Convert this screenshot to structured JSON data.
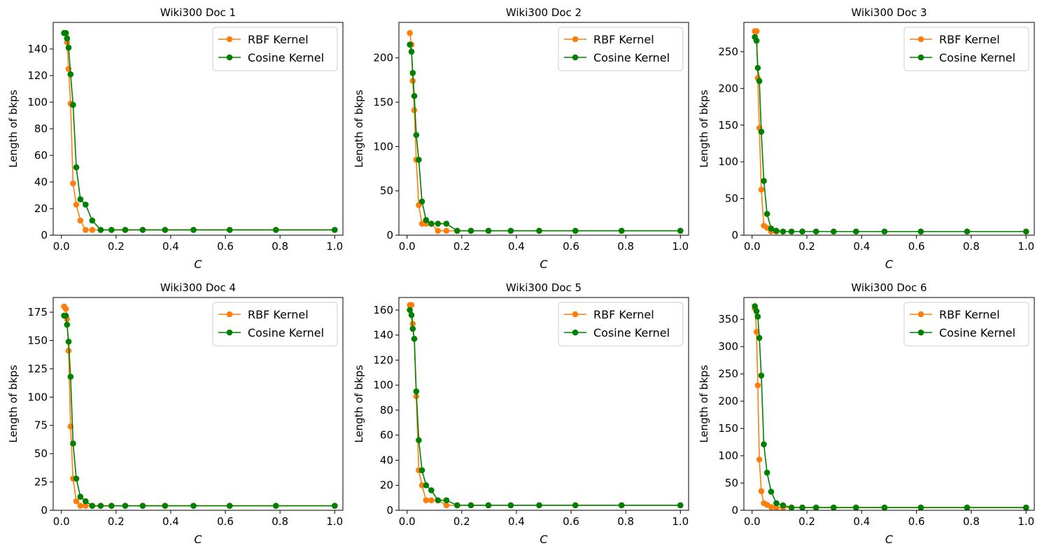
{
  "colors": {
    "rbf": "#ff7f0e",
    "cosine": "#008000"
  },
  "chart_data": [
    {
      "type": "line",
      "title": "Wiki300 Doc 1",
      "xlabel": "C",
      "ylabel": "Length of bkps",
      "xlim": [
        -0.03,
        1.03
      ],
      "ylim": [
        0,
        160
      ],
      "xticks": [
        0.0,
        0.2,
        0.4,
        0.6,
        0.8,
        1.0
      ],
      "yticks": [
        0,
        20,
        40,
        60,
        80,
        100,
        120,
        140
      ],
      "legend": "top-right",
      "x": [
        0.01,
        0.0162,
        0.0207,
        0.0264,
        0.0336,
        0.0428,
        0.0546,
        0.0695,
        0.0886,
        0.1129,
        0.1438,
        0.1833,
        0.2336,
        0.2976,
        0.3793,
        0.4833,
        0.6158,
        0.7848,
        1.0
      ],
      "series": [
        {
          "name": "RBF Kernel",
          "color": "#ff7f0e",
          "values": [
            152,
            152,
            145,
            125,
            99,
            39,
            23,
            11,
            4,
            4,
            4,
            4,
            4,
            4,
            4,
            4,
            4,
            4,
            4
          ]
        },
        {
          "name": "Cosine Kernel",
          "color": "#008000",
          "values": [
            152,
            152,
            148,
            141,
            121,
            98,
            51,
            27,
            23,
            11,
            4,
            4,
            4,
            4,
            4,
            4,
            4,
            4,
            4
          ]
        }
      ]
    },
    {
      "type": "line",
      "title": "Wiki300 Doc 2",
      "xlabel": "C",
      "ylabel": "Length of bkps",
      "xlim": [
        -0.03,
        1.03
      ],
      "ylim": [
        0,
        240
      ],
      "xticks": [
        0.0,
        0.2,
        0.4,
        0.6,
        0.8,
        1.0
      ],
      "yticks": [
        0,
        50,
        100,
        150,
        200
      ],
      "legend": "top-right",
      "x": [
        0.01,
        0.0162,
        0.0207,
        0.0264,
        0.0336,
        0.0428,
        0.0546,
        0.0695,
        0.0886,
        0.1129,
        0.1438,
        0.1833,
        0.2336,
        0.2976,
        0.3793,
        0.4833,
        0.6158,
        0.7848,
        1.0
      ],
      "series": [
        {
          "name": "RBF Kernel",
          "color": "#ff7f0e",
          "values": [
            228,
            215,
            174,
            141,
            85,
            34,
            13,
            13,
            13,
            5,
            5,
            5,
            5,
            5,
            5,
            5,
            5,
            5,
            5
          ]
        },
        {
          "name": "Cosine Kernel",
          "color": "#008000",
          "values": [
            215,
            207,
            183,
            157,
            113,
            85,
            38,
            17,
            13,
            13,
            13,
            5,
            5,
            5,
            5,
            5,
            5,
            5,
            5
          ]
        }
      ]
    },
    {
      "type": "line",
      "title": "Wiki300 Doc 3",
      "xlabel": "C",
      "ylabel": "Length of bkps",
      "xlim": [
        -0.03,
        1.03
      ],
      "ylim": [
        0,
        290
      ],
      "xticks": [
        0.0,
        0.2,
        0.4,
        0.6,
        0.8,
        1.0
      ],
      "yticks": [
        0,
        50,
        100,
        150,
        200,
        250
      ],
      "legend": "top-right",
      "x": [
        0.01,
        0.0162,
        0.0207,
        0.0264,
        0.0336,
        0.0428,
        0.0546,
        0.0695,
        0.0886,
        0.1129,
        0.1438,
        0.1833,
        0.2336,
        0.2976,
        0.3793,
        0.4833,
        0.6158,
        0.7848,
        1.0
      ],
      "series": [
        {
          "name": "RBF Kernel",
          "color": "#ff7f0e",
          "values": [
            278,
            278,
            214,
            146,
            62,
            13,
            10,
            5,
            5,
            5,
            5,
            5,
            5,
            5,
            5,
            5,
            5,
            5,
            5
          ]
        },
        {
          "name": "Cosine Kernel",
          "color": "#008000",
          "values": [
            270,
            265,
            228,
            210,
            141,
            74,
            29,
            9,
            6,
            5,
            5,
            5,
            5,
            5,
            5,
            5,
            5,
            5,
            5
          ]
        }
      ]
    },
    {
      "type": "line",
      "title": "Wiki300 Doc 4",
      "xlabel": "C",
      "ylabel": "Length of bkps",
      "xlim": [
        -0.03,
        1.03
      ],
      "ylim": [
        0,
        188
      ],
      "xticks": [
        0.0,
        0.2,
        0.4,
        0.6,
        0.8,
        1.0
      ],
      "yticks": [
        0,
        25,
        50,
        75,
        100,
        125,
        150,
        175
      ],
      "legend": "top-right",
      "x": [
        0.01,
        0.0162,
        0.0207,
        0.0264,
        0.0336,
        0.0428,
        0.0546,
        0.0695,
        0.0886,
        0.1129,
        0.1438,
        0.1833,
        0.2336,
        0.2976,
        0.3793,
        0.4833,
        0.6158,
        0.7848,
        1.0
      ],
      "series": [
        {
          "name": "RBF Kernel",
          "color": "#ff7f0e",
          "values": [
            180,
            178,
            169,
            141,
            74,
            28,
            8,
            4,
            4,
            4,
            4,
            4,
            4,
            4,
            4,
            4,
            4,
            4,
            4
          ]
        },
        {
          "name": "Cosine Kernel",
          "color": "#008000",
          "values": [
            172,
            172,
            164,
            149,
            118,
            59,
            28,
            12,
            8,
            4,
            4,
            4,
            4,
            4,
            4,
            4,
            4,
            4,
            4
          ]
        }
      ]
    },
    {
      "type": "line",
      "title": "Wiki300 Doc 5",
      "xlabel": "C",
      "ylabel": "Length of bkps",
      "xlim": [
        -0.03,
        1.03
      ],
      "ylim": [
        0,
        170
      ],
      "xticks": [
        0.0,
        0.2,
        0.4,
        0.6,
        0.8,
        1.0
      ],
      "yticks": [
        0,
        20,
        40,
        60,
        80,
        100,
        120,
        140,
        160
      ],
      "legend": "top-right",
      "x": [
        0.01,
        0.0162,
        0.0207,
        0.0264,
        0.0336,
        0.0428,
        0.0546,
        0.0695,
        0.0886,
        0.1129,
        0.1438,
        0.1833,
        0.2336,
        0.2976,
        0.3793,
        0.4833,
        0.6158,
        0.7848,
        1.0
      ],
      "series": [
        {
          "name": "RBF Kernel",
          "color": "#ff7f0e",
          "values": [
            164,
            164,
            149,
            137,
            91,
            32,
            20,
            8,
            8,
            8,
            4,
            4,
            4,
            4,
            4,
            4,
            4,
            4,
            4
          ]
        },
        {
          "name": "Cosine Kernel",
          "color": "#008000",
          "values": [
            160,
            156,
            145,
            137,
            95,
            56,
            32,
            20,
            16,
            8,
            8,
            4,
            4,
            4,
            4,
            4,
            4,
            4,
            4
          ]
        }
      ]
    },
    {
      "type": "line",
      "title": "Wiki300 Doc 6",
      "xlabel": "C",
      "ylabel": "Length of bkps",
      "xlim": [
        -0.03,
        1.03
      ],
      "ylim": [
        0,
        390
      ],
      "xticks": [
        0.0,
        0.2,
        0.4,
        0.6,
        0.8,
        1.0
      ],
      "yticks": [
        0,
        50,
        100,
        150,
        200,
        250,
        300,
        350
      ],
      "legend": "top-right",
      "x": [
        0.01,
        0.0162,
        0.0207,
        0.0264,
        0.0336,
        0.0428,
        0.0546,
        0.0695,
        0.0886,
        0.1129,
        0.1438,
        0.1833,
        0.2336,
        0.2976,
        0.3793,
        0.4833,
        0.6158,
        0.7848,
        1.0
      ],
      "series": [
        {
          "name": "RBF Kernel",
          "color": "#ff7f0e",
          "values": [
            370,
            327,
            229,
            93,
            35,
            13,
            10,
            6,
            5,
            5,
            5,
            5,
            5,
            5,
            5,
            5,
            5,
            5,
            5
          ]
        },
        {
          "name": "Cosine Kernel",
          "color": "#008000",
          "values": [
            374,
            365,
            355,
            316,
            247,
            121,
            69,
            34,
            13,
            9,
            5,
            5,
            5,
            5,
            5,
            5,
            5,
            5,
            5
          ]
        }
      ]
    }
  ]
}
